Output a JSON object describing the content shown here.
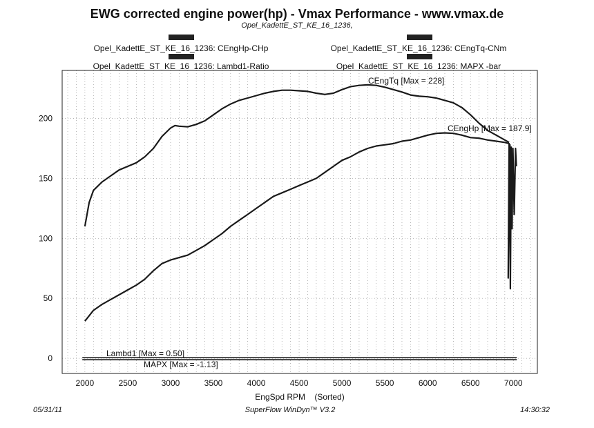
{
  "chart_data": {
    "type": "line",
    "title": "EWG corrected engine power(hp) - Vmax Performance - www.vmax.de",
    "subtitle": "Opel_KadettE_ST_KE_16_1236,",
    "xlabel": "EngSpd RPM    (Sorted)",
    "ylabel": "",
    "xlim": [
      1735,
      7280
    ],
    "ylim": [
      -12.6,
      240
    ],
    "x_ticks": [
      "2000",
      "2500",
      "3000",
      "3500",
      "4000",
      "4500",
      "5000",
      "5500",
      "6000",
      "6500",
      "7000"
    ],
    "y_ticks": [
      "0",
      "50",
      "100",
      "150",
      "200"
    ],
    "grid": true,
    "legend": [
      {
        "label": "Opel_KadettE_ST_KE_16_1236: CEngHp-CHp",
        "color": "#222222"
      },
      {
        "label": "Opel_KadettE_ST_KE_16_1236: CEngTq-CNm",
        "color": "#222222"
      },
      {
        "label": "Opel_KadettE_ST_KE_16_1236: Lambd1-Ratio",
        "color": "#222222"
      },
      {
        "label": "Opel_KadettE_ST_KE_16_1236: MAPX  -bar",
        "color": "#222222"
      }
    ],
    "series": [
      {
        "name": "CEngTq",
        "annotation": "CEngTq [Max = 228]",
        "x": [
          2000,
          2050,
          2100,
          2200,
          2300,
          2400,
          2500,
          2600,
          2700,
          2800,
          2900,
          3000,
          3050,
          3100,
          3200,
          3300,
          3400,
          3500,
          3600,
          3700,
          3800,
          3900,
          4000,
          4100,
          4200,
          4300,
          4400,
          4500,
          4600,
          4700,
          4800,
          4900,
          5000,
          5100,
          5200,
          5300,
          5400,
          5500,
          5600,
          5700,
          5800,
          5900,
          6000,
          6100,
          6200,
          6300,
          6400,
          6500,
          6600,
          6700,
          6800,
          6900,
          6950
        ],
        "y": [
          110,
          130,
          140,
          147,
          152,
          157,
          160,
          163,
          168,
          175,
          185,
          192,
          194,
          193.5,
          193,
          195,
          198,
          203,
          208,
          212,
          215,
          217,
          219,
          221,
          222.5,
          223.5,
          223.5,
          223,
          222.5,
          221,
          220,
          221,
          224,
          226.5,
          227.5,
          228,
          227.5,
          226,
          224,
          222,
          219.5,
          218.5,
          218,
          217,
          215,
          213,
          209,
          203,
          196,
          190,
          186,
          182,
          180
        ]
      },
      {
        "name": "CEngHp",
        "annotation": "CEngHp [Max = 187.9]",
        "x": [
          2000,
          2100,
          2200,
          2300,
          2400,
          2500,
          2600,
          2700,
          2800,
          2900,
          3000,
          3100,
          3200,
          3300,
          3400,
          3500,
          3600,
          3700,
          3800,
          3900,
          4000,
          4100,
          4200,
          4300,
          4400,
          4500,
          4600,
          4700,
          4800,
          4900,
          5000,
          5100,
          5200,
          5300,
          5400,
          5500,
          5600,
          5700,
          5800,
          5900,
          6000,
          6100,
          6200,
          6300,
          6400,
          6500,
          6600,
          6700,
          6800,
          6900,
          6950,
          6940,
          6960,
          6965,
          6975,
          6985,
          6995,
          7010,
          7025,
          7035
        ],
        "y": [
          31,
          40,
          45,
          49,
          53,
          57,
          61,
          66,
          73,
          79,
          82,
          84,
          86,
          90,
          94,
          99,
          104,
          110,
          115,
          120,
          125,
          130,
          135,
          138,
          141,
          144,
          147,
          150,
          155,
          160,
          165,
          168,
          172,
          175,
          177,
          178,
          179,
          181,
          182,
          184,
          186,
          187.5,
          187.9,
          187.5,
          186,
          184,
          183.5,
          182,
          181,
          180,
          179,
          67,
          178,
          58,
          176,
          108,
          175,
          120,
          175,
          160
        ]
      },
      {
        "name": "Lambd1",
        "annotation": "Lambd1 [Max = 0.50]",
        "x": [
          1970,
          7040
        ],
        "y": [
          0.5,
          0.5
        ]
      },
      {
        "name": "MAPX",
        "annotation": "MAPX   [Max = -1.13]",
        "x": [
          1970,
          7040
        ],
        "y": [
          -1.13,
          -1.13
        ]
      }
    ]
  },
  "footer": {
    "date": "05/31/11",
    "software": "SuperFlow WinDyn™ V3.2",
    "time": "14:30:32"
  }
}
